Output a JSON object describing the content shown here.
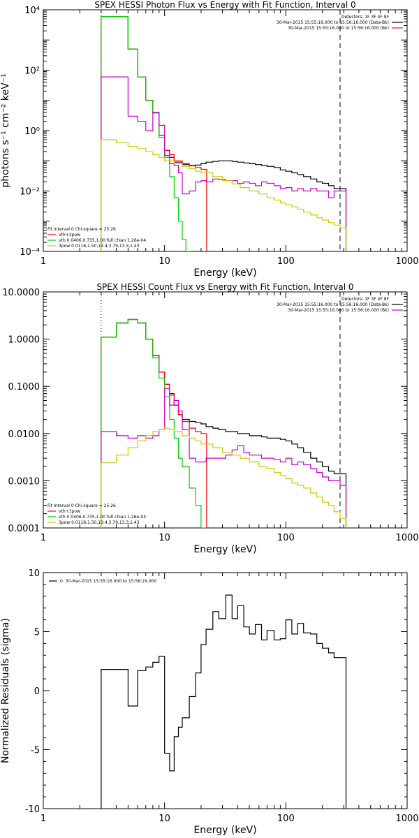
{
  "chart_data": [
    {
      "type": "line",
      "title": "SPEX HESSI Photon Flux vs Energy with Fit Function, Interval 0",
      "xlabel": "Energy (keV)",
      "ylabel": "photons s⁻¹ cm⁻² keV⁻¹",
      "xscale": "log",
      "yscale": "log",
      "xlim": [
        1,
        1000
      ],
      "ylim": [
        0.0001,
        10000
      ],
      "x_ticks": [
        {
          "v": 1,
          "t": "1"
        },
        {
          "v": 10,
          "t": "10"
        },
        {
          "v": 100,
          "t": "100"
        },
        {
          "v": 1000,
          "t": "1000"
        }
      ],
      "y_ticks": [
        {
          "v": 0.0001,
          "t": "10⁻⁴"
        },
        {
          "v": 0.01,
          "t": "10⁻²"
        },
        {
          "v": 1,
          "t": "10⁰"
        },
        {
          "v": 100,
          "t": "10²"
        },
        {
          "v": 10000,
          "t": "10⁴"
        }
      ],
      "vlines": [
        {
          "x": 3,
          "style": "dotted"
        },
        {
          "x": 280,
          "style": "dashed"
        }
      ],
      "legend_top_right": [
        {
          "text": "Detectors: 1F 3F 4F 8F",
          "color": ""
        },
        {
          "text": "30-Mar-2015 15:55:16.000 to 15:56:16.000 (Data-Bk)",
          "color": "#000000"
        },
        {
          "text": "30-Mar-2015 15:55:16.000 to 15:56:16.000 (Bk)",
          "color": "#cc00cc"
        }
      ],
      "legend_bottom_left": [
        {
          "text": "Fit Interval 0   Chi-square = 25.26",
          "color": ""
        },
        {
          "text": "vth+3pow",
          "color": "#ff0000"
        },
        {
          "text": "vth 0.0406,0.735,1.00  full chian 1.26e-04",
          "color": "#00cc00"
        },
        {
          "text": "3pow 0.0118,1.50,13.4,3.79,13.3,1.43",
          "color": "#cccc00"
        }
      ],
      "series": [
        {
          "color": "#000000",
          "x": [
            3,
            4,
            5,
            6,
            7,
            8,
            9,
            10,
            11,
            12,
            14,
            16,
            18,
            20,
            22,
            25,
            28,
            32,
            36,
            40,
            45,
            50,
            56,
            63,
            70,
            80,
            90,
            100,
            112,
            125,
            140,
            160,
            180,
            200,
            225,
            250,
            280
          ],
          "values": [
            6000,
            6000,
            500,
            60,
            10,
            4,
            0.7,
            0.22,
            0.13,
            0.09,
            0.075,
            0.07,
            0.072,
            0.08,
            0.09,
            0.095,
            0.1,
            0.1,
            0.095,
            0.09,
            0.085,
            0.08,
            0.075,
            0.07,
            0.065,
            0.06,
            0.05,
            0.045,
            0.04,
            0.035,
            0.03,
            0.025,
            0.02,
            0.018,
            0.015,
            0.012,
            0.012
          ]
        },
        {
          "color": "#ff0000",
          "x": [
            3,
            4,
            5,
            6,
            7,
            8,
            9,
            10,
            11,
            12,
            14,
            16,
            18,
            20
          ],
          "values": [
            6000,
            6000,
            500,
            60,
            10,
            4,
            0.7,
            0.22,
            0.16,
            0.1,
            0.08,
            0.068,
            0.06,
            0.052
          ]
        },
        {
          "color": "#00cc00",
          "x": [
            3,
            4,
            5,
            6,
            7,
            8,
            9,
            10,
            11,
            12,
            13,
            14,
            15
          ],
          "values": [
            6000,
            6000,
            500,
            60,
            10,
            3.8,
            0.6,
            0.13,
            0.03,
            0.006,
            0.001,
            0.00025,
            0.0001
          ]
        },
        {
          "color": "#cc00cc",
          "x": [
            3,
            4,
            5,
            6,
            7,
            8,
            9,
            10,
            11,
            12,
            13,
            14,
            16,
            18,
            20,
            22,
            25,
            28,
            32,
            36,
            40,
            45,
            50,
            56,
            63,
            70,
            80,
            90,
            100,
            112,
            125,
            140,
            160,
            180,
            200,
            225,
            250,
            280
          ],
          "values": [
            60,
            60,
            3,
            2,
            1,
            4,
            1.5,
            0.15,
            0.08,
            0.07,
            0.04,
            0.008,
            0.01,
            0.02,
            0.022,
            0.02,
            0.025,
            0.024,
            0.022,
            0.022,
            0.018,
            0.02,
            0.018,
            0.015,
            0.02,
            0.018,
            0.015,
            0.012,
            0.013,
            0.01,
            0.012,
            0.01,
            0.012,
            0.01,
            0.01,
            0.006,
            0.01,
            0.01
          ]
        },
        {
          "color": "#cccc00",
          "x": [
            3,
            4,
            5,
            6,
            7,
            8,
            9,
            10,
            12,
            14,
            16,
            18,
            20,
            25,
            30,
            36,
            42,
            50,
            60,
            70,
            80,
            90,
            100,
            112,
            125,
            140,
            160,
            180,
            200,
            225,
            250,
            280
          ],
          "values": [
            0.5,
            0.4,
            0.3,
            0.25,
            0.2,
            0.16,
            0.13,
            0.1,
            0.08,
            0.065,
            0.055,
            0.045,
            0.04,
            0.03,
            0.022,
            0.017,
            0.013,
            0.01,
            0.008,
            0.006,
            0.005,
            0.004,
            0.0035,
            0.003,
            0.0025,
            0.002,
            0.0016,
            0.0013,
            0.0011,
            0.0009,
            0.00075,
            0.0006
          ]
        }
      ]
    },
    {
      "type": "line",
      "title": "SPEX HESSI Count Flux vs Energy with Fit Function, Interval 0",
      "xlabel": "Energy (keV)",
      "ylabel": "",
      "xscale": "log",
      "yscale": "log",
      "xlim": [
        1,
        1000
      ],
      "ylim": [
        0.0001,
        10
      ],
      "x_ticks": [
        {
          "v": 1,
          "t": "1"
        },
        {
          "v": 10,
          "t": "10"
        },
        {
          "v": 100,
          "t": "100"
        },
        {
          "v": 1000,
          "t": "1000"
        }
      ],
      "y_ticks": [
        {
          "v": 0.0001,
          "t": "0.0001"
        },
        {
          "v": 0.001,
          "t": "0.0010"
        },
        {
          "v": 0.01,
          "t": "0.0100"
        },
        {
          "v": 0.1,
          "t": "0.1000"
        },
        {
          "v": 1,
          "t": "1.0000"
        },
        {
          "v": 10,
          "t": "10.0000"
        }
      ],
      "vlines": [
        {
          "x": 3,
          "style": "dotted"
        },
        {
          "x": 280,
          "style": "dashed"
        }
      ],
      "legend_top_right": [
        {
          "text": "Detectors: 1F 3F 4F 8F",
          "color": ""
        },
        {
          "text": "30-Mar-2015 15:55:16.000 to 15:56:16.000 (Data-Bk)",
          "color": "#000000"
        },
        {
          "text": "30-Mar-2015 15:55:16.000 to 15:56:16.000 (Bk)",
          "color": "#cc00cc"
        }
      ],
      "legend_bottom_left": [
        {
          "text": "Fit Interval 0   Chi-square = 25.26",
          "color": ""
        },
        {
          "text": "vth+3pow",
          "color": "#ff0000"
        },
        {
          "text": "vth 0.0406,0.735,1.00  full chian 1.26e-04",
          "color": "#00cc00"
        },
        {
          "text": "3pow 0.0118,1.50,13.4,3.79,13.3,1.43",
          "color": "#cccc00"
        }
      ],
      "series": [
        {
          "color": "#000000",
          "x": [
            3,
            4,
            5,
            6,
            7,
            8,
            9,
            10,
            11,
            12,
            13,
            14,
            16,
            18,
            20,
            22,
            25,
            28,
            32,
            36,
            40,
            45,
            50,
            56,
            63,
            70,
            80,
            90,
            100,
            112,
            125,
            140,
            160,
            180,
            200,
            225,
            250,
            280
          ],
          "values": [
            1.1,
            2.2,
            2.6,
            2.2,
            1.0,
            0.45,
            0.2,
            0.11,
            0.07,
            0.04,
            0.025,
            0.02,
            0.018,
            0.017,
            0.016,
            0.014,
            0.013,
            0.012,
            0.011,
            0.011,
            0.01,
            0.01,
            0.009,
            0.009,
            0.0085,
            0.008,
            0.008,
            0.0075,
            0.007,
            0.006,
            0.005,
            0.004,
            0.003,
            0.0025,
            0.002,
            0.0016,
            0.0014,
            0.0014
          ]
        },
        {
          "color": "#ff0000",
          "x": [
            3,
            4,
            5,
            6,
            7,
            8,
            9,
            10,
            11,
            12,
            13,
            14,
            16,
            18,
            20
          ],
          "values": [
            1.1,
            2.2,
            2.6,
            2.2,
            1.0,
            0.45,
            0.2,
            0.11,
            0.065,
            0.04,
            0.025,
            0.018,
            0.013,
            0.011,
            0.01
          ]
        },
        {
          "color": "#00cc00",
          "x": [
            3,
            4,
            5,
            6,
            7,
            8,
            9,
            10,
            11,
            12,
            13,
            14,
            16,
            18,
            20
          ],
          "values": [
            1.1,
            2.2,
            2.6,
            2.2,
            1.0,
            0.4,
            0.15,
            0.06,
            0.02,
            0.008,
            0.003,
            0.002,
            0.0007,
            0.0003,
            0.0001
          ]
        },
        {
          "color": "#cc00cc",
          "x": [
            3,
            4,
            5,
            6,
            7,
            8,
            9,
            10,
            11,
            12,
            13,
            14,
            16,
            18,
            20,
            22,
            25,
            28,
            32,
            36,
            40,
            45,
            50,
            56,
            63,
            70,
            80,
            90,
            100,
            112,
            125,
            140,
            160,
            180,
            200,
            225,
            250,
            280
          ],
          "values": [
            0.011,
            0.009,
            0.008,
            0.009,
            0.008,
            0.009,
            0.012,
            0.09,
            0.04,
            0.05,
            0.03,
            0.012,
            0.003,
            0.0025,
            0.0025,
            0.003,
            0.003,
            0.003,
            0.0035,
            0.0045,
            0.0055,
            0.004,
            0.0035,
            0.0035,
            0.003,
            0.003,
            0.0028,
            0.0025,
            0.003,
            0.0022,
            0.0025,
            0.0022,
            0.0018,
            0.0015,
            0.0012,
            0.001,
            0.001,
            0.0008
          ]
        },
        {
          "color": "#cccc00",
          "x": [
            3,
            4,
            5,
            6,
            7,
            8,
            9,
            10,
            11,
            12,
            14,
            16,
            18,
            20,
            25,
            30,
            36,
            42,
            50,
            60,
            70,
            80,
            90,
            100,
            112,
            125,
            140,
            160,
            180,
            200,
            225,
            250,
            280
          ],
          "values": [
            0.0024,
            0.0035,
            0.005,
            0.007,
            0.009,
            0.011,
            0.012,
            0.013,
            0.012,
            0.011,
            0.009,
            0.008,
            0.007,
            0.006,
            0.005,
            0.004,
            0.0035,
            0.003,
            0.0025,
            0.002,
            0.0018,
            0.0015,
            0.0013,
            0.0011,
            0.0009,
            0.0008,
            0.0007,
            0.00055,
            0.00045,
            0.00035,
            0.0003,
            0.00022,
            0.00016
          ]
        }
      ]
    },
    {
      "type": "line",
      "title": "",
      "xlabel": "Energy (keV)",
      "ylabel": "Normalized Residuals (sigma)",
      "xscale": "log",
      "yscale": "linear",
      "xlim": [
        1,
        1000
      ],
      "ylim": [
        -10,
        10
      ],
      "x_ticks": [
        {
          "v": 1,
          "t": "1"
        },
        {
          "v": 10,
          "t": "10"
        },
        {
          "v": 100,
          "t": "100"
        },
        {
          "v": 1000,
          "t": "1000"
        }
      ],
      "y_ticks": [
        {
          "v": -10,
          "t": "-10"
        },
        {
          "v": -5,
          "t": "-5"
        },
        {
          "v": 0,
          "t": "0"
        },
        {
          "v": 5,
          "t": "5"
        },
        {
          "v": 10,
          "t": "10"
        }
      ],
      "vlines": [],
      "legend_top_left": [
        {
          "text": "0. 30-Mar-2015 15:55:16.000 to 15:56:16.000",
          "color": "#000000"
        }
      ],
      "legend_top_right": [],
      "legend_bottom_left": [],
      "series": [
        {
          "color": "#000000",
          "x": [
            3,
            4,
            5,
            6,
            7,
            8,
            9,
            10,
            11,
            12,
            13,
            14,
            16,
            18,
            20,
            22,
            25,
            28,
            32,
            36,
            40,
            45,
            50,
            56,
            63,
            70,
            80,
            90,
            100,
            112,
            125,
            140,
            160,
            180,
            200,
            225,
            250,
            280
          ],
          "values": [
            1.8,
            1.8,
            -1.3,
            1.7,
            2.0,
            2.4,
            2.9,
            -5.3,
            -6.8,
            -3.9,
            -3.1,
            -2.3,
            -0.5,
            1.5,
            3.9,
            5.2,
            6.7,
            6.1,
            8.1,
            6.1,
            7.2,
            5.4,
            4.8,
            5.6,
            4.3,
            5.1,
            4.3,
            4.4,
            6.0,
            4.8,
            5.7,
            4.9,
            4.8,
            4.0,
            3.6,
            3.2,
            2.8,
            2.8
          ]
        }
      ]
    }
  ]
}
